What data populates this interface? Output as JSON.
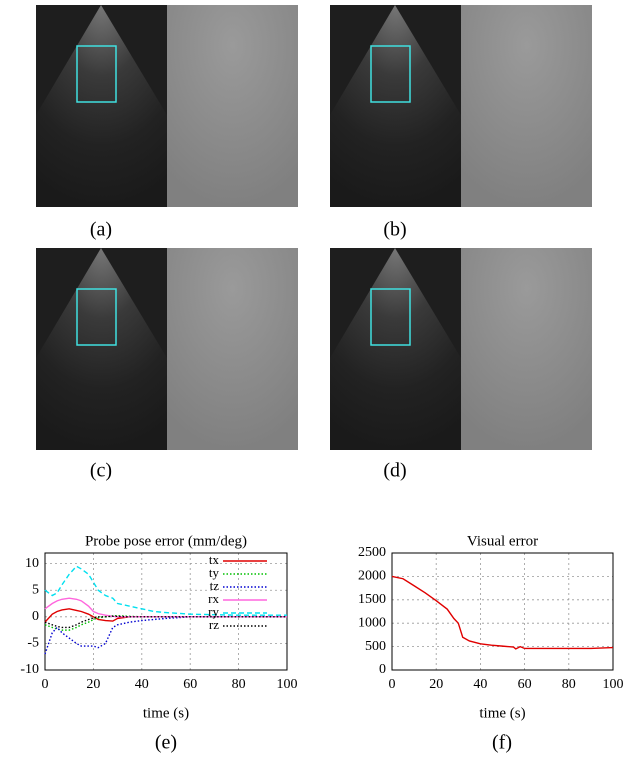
{
  "panels": [
    "(a)",
    "(b)",
    "(c)",
    "(d)",
    "(e)",
    "(f)"
  ],
  "chart_data": [
    {
      "type": "line",
      "title": "Probe pose error (mm/deg)",
      "xlabel": "time (s)",
      "x": [
        0,
        3,
        5,
        7,
        10,
        13,
        15,
        18,
        20,
        22,
        25,
        28,
        30,
        35,
        40,
        45,
        50,
        60,
        70,
        80,
        90,
        100
      ],
      "series": [
        {
          "name": "tx",
          "color": "#e00000",
          "dash": "solid",
          "values": [
            -1,
            0.5,
            1,
            1.3,
            1.5,
            1.2,
            1,
            0.5,
            0,
            -0.5,
            -0.7,
            -0.8,
            -0.3,
            0,
            0,
            0,
            0,
            0,
            0,
            0,
            0,
            0
          ]
        },
        {
          "name": "ty",
          "color": "#00c000",
          "dash": "dotted",
          "values": [
            -1.5,
            -2,
            -2.3,
            -2.5,
            -2.5,
            -2,
            -1.5,
            -1,
            -0.5,
            -0.2,
            0,
            0.2,
            0.2,
            0.1,
            0,
            0,
            0,
            0,
            0,
            0,
            0,
            0
          ]
        },
        {
          "name": "tz",
          "color": "#0000d0",
          "dash": "dotted",
          "values": [
            -7,
            -3,
            -2,
            -3,
            -4,
            -5,
            -5.5,
            -5.5,
            -5.5,
            -5.8,
            -5,
            -2,
            -1.5,
            -1,
            -0.7,
            -0.5,
            -0.3,
            0,
            0,
            0,
            0,
            0
          ]
        },
        {
          "name": "rx",
          "color": "#ff66dd",
          "dash": "solid",
          "values": [
            1.5,
            2.5,
            3,
            3.3,
            3.5,
            3.3,
            3,
            2,
            1,
            0.6,
            0.3,
            0.1,
            0,
            0,
            0,
            0,
            0,
            0,
            0,
            0,
            0,
            0
          ]
        },
        {
          "name": "ry",
          "color": "#00e0f0",
          "dash": "dashed",
          "values": [
            5,
            4,
            4.5,
            6,
            8,
            9.5,
            9,
            8,
            6.5,
            5,
            4,
            3.5,
            2.5,
            2,
            1.5,
            1,
            0.8,
            0.5,
            0.4,
            0.3,
            0.3,
            0.3
          ]
        },
        {
          "name": "rz",
          "color": "#000000",
          "dash": "dotted",
          "values": [
            -1,
            -1.5,
            -1.8,
            -2,
            -2,
            -1.5,
            -1,
            -0.5,
            -0.2,
            0,
            0,
            0.1,
            0.1,
            0,
            0,
            0,
            0,
            0,
            0,
            0,
            0,
            0
          ]
        }
      ],
      "xlim": [
        0,
        100
      ],
      "xticks": [
        0,
        20,
        40,
        60,
        80,
        100
      ],
      "ylim": [
        -10,
        12
      ],
      "yticks": [
        -10,
        -5,
        0,
        5,
        10
      ],
      "grid": true,
      "legend": "upper right"
    },
    {
      "type": "line",
      "title": "Visual error",
      "xlabel": "time (s)",
      "x": [
        0,
        5,
        10,
        15,
        20,
        25,
        28,
        30,
        32,
        35,
        40,
        45,
        50,
        55,
        56,
        58,
        60,
        70,
        80,
        90,
        100
      ],
      "series": [
        {
          "color": "#e00000",
          "dash": "solid",
          "values": [
            2000,
            1950,
            1800,
            1650,
            1480,
            1300,
            1100,
            1000,
            700,
            620,
            560,
            530,
            510,
            490,
            450,
            500,
            460,
            460,
            460,
            460,
            480
          ]
        }
      ],
      "xlim": [
        0,
        100
      ],
      "xticks": [
        0,
        20,
        40,
        60,
        80,
        100
      ],
      "ylim": [
        0,
        2500
      ],
      "yticks": [
        0,
        500,
        1000,
        1500,
        2000,
        2500
      ],
      "grid": true
    }
  ]
}
